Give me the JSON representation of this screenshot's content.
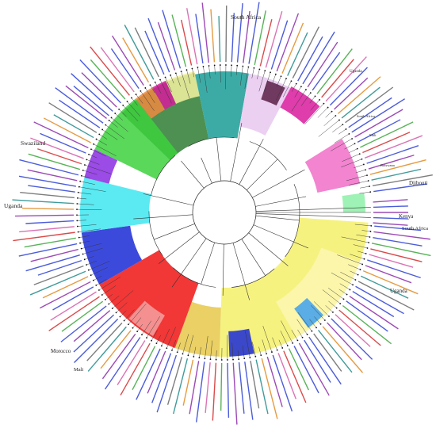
{
  "figure": {
    "region_labels": {
      "south_africa_top": "South Africa",
      "uganda_top": "Uganda",
      "south_africa_right": "South Africa",
      "mali_right": "Mali",
      "botswana": "Botswana",
      "djibouti": "Djibouti",
      "kenya": "Kenya",
      "south_africa_mid": "South Africa",
      "uganda_mid": "Uganda",
      "swaziland": "Swaziland",
      "uganda_left": "Uganda",
      "morocco": "Morocco",
      "mali_bottom": "Mali"
    },
    "clade_colors": {
      "dark_green": "#2e7d32",
      "teal": "#1a9c96",
      "dark_purple": "#5a1f45",
      "lavender": "#e8c8f0",
      "magenta": "#d81b9c",
      "pink": "#f06fc8",
      "green": "#3dd13d",
      "cyan": "#3ee6f0",
      "blue": "#1a2ad6",
      "red": "#f01414",
      "salmon": "#f5a0a0",
      "yellow": "#f5f06a",
      "light_yellow": "#fbf7b0",
      "gold": "#e6c84a",
      "violet": "#8a2be2"
    },
    "label_colors": {
      "blue": "#2b3fd4",
      "purple": "#8a2aa8",
      "green": "#3aa63a",
      "red": "#d42a2a",
      "pink": "#d45aa8",
      "orange": "#e08a20",
      "teal": "#208a8a",
      "gray": "#666666"
    }
  }
}
